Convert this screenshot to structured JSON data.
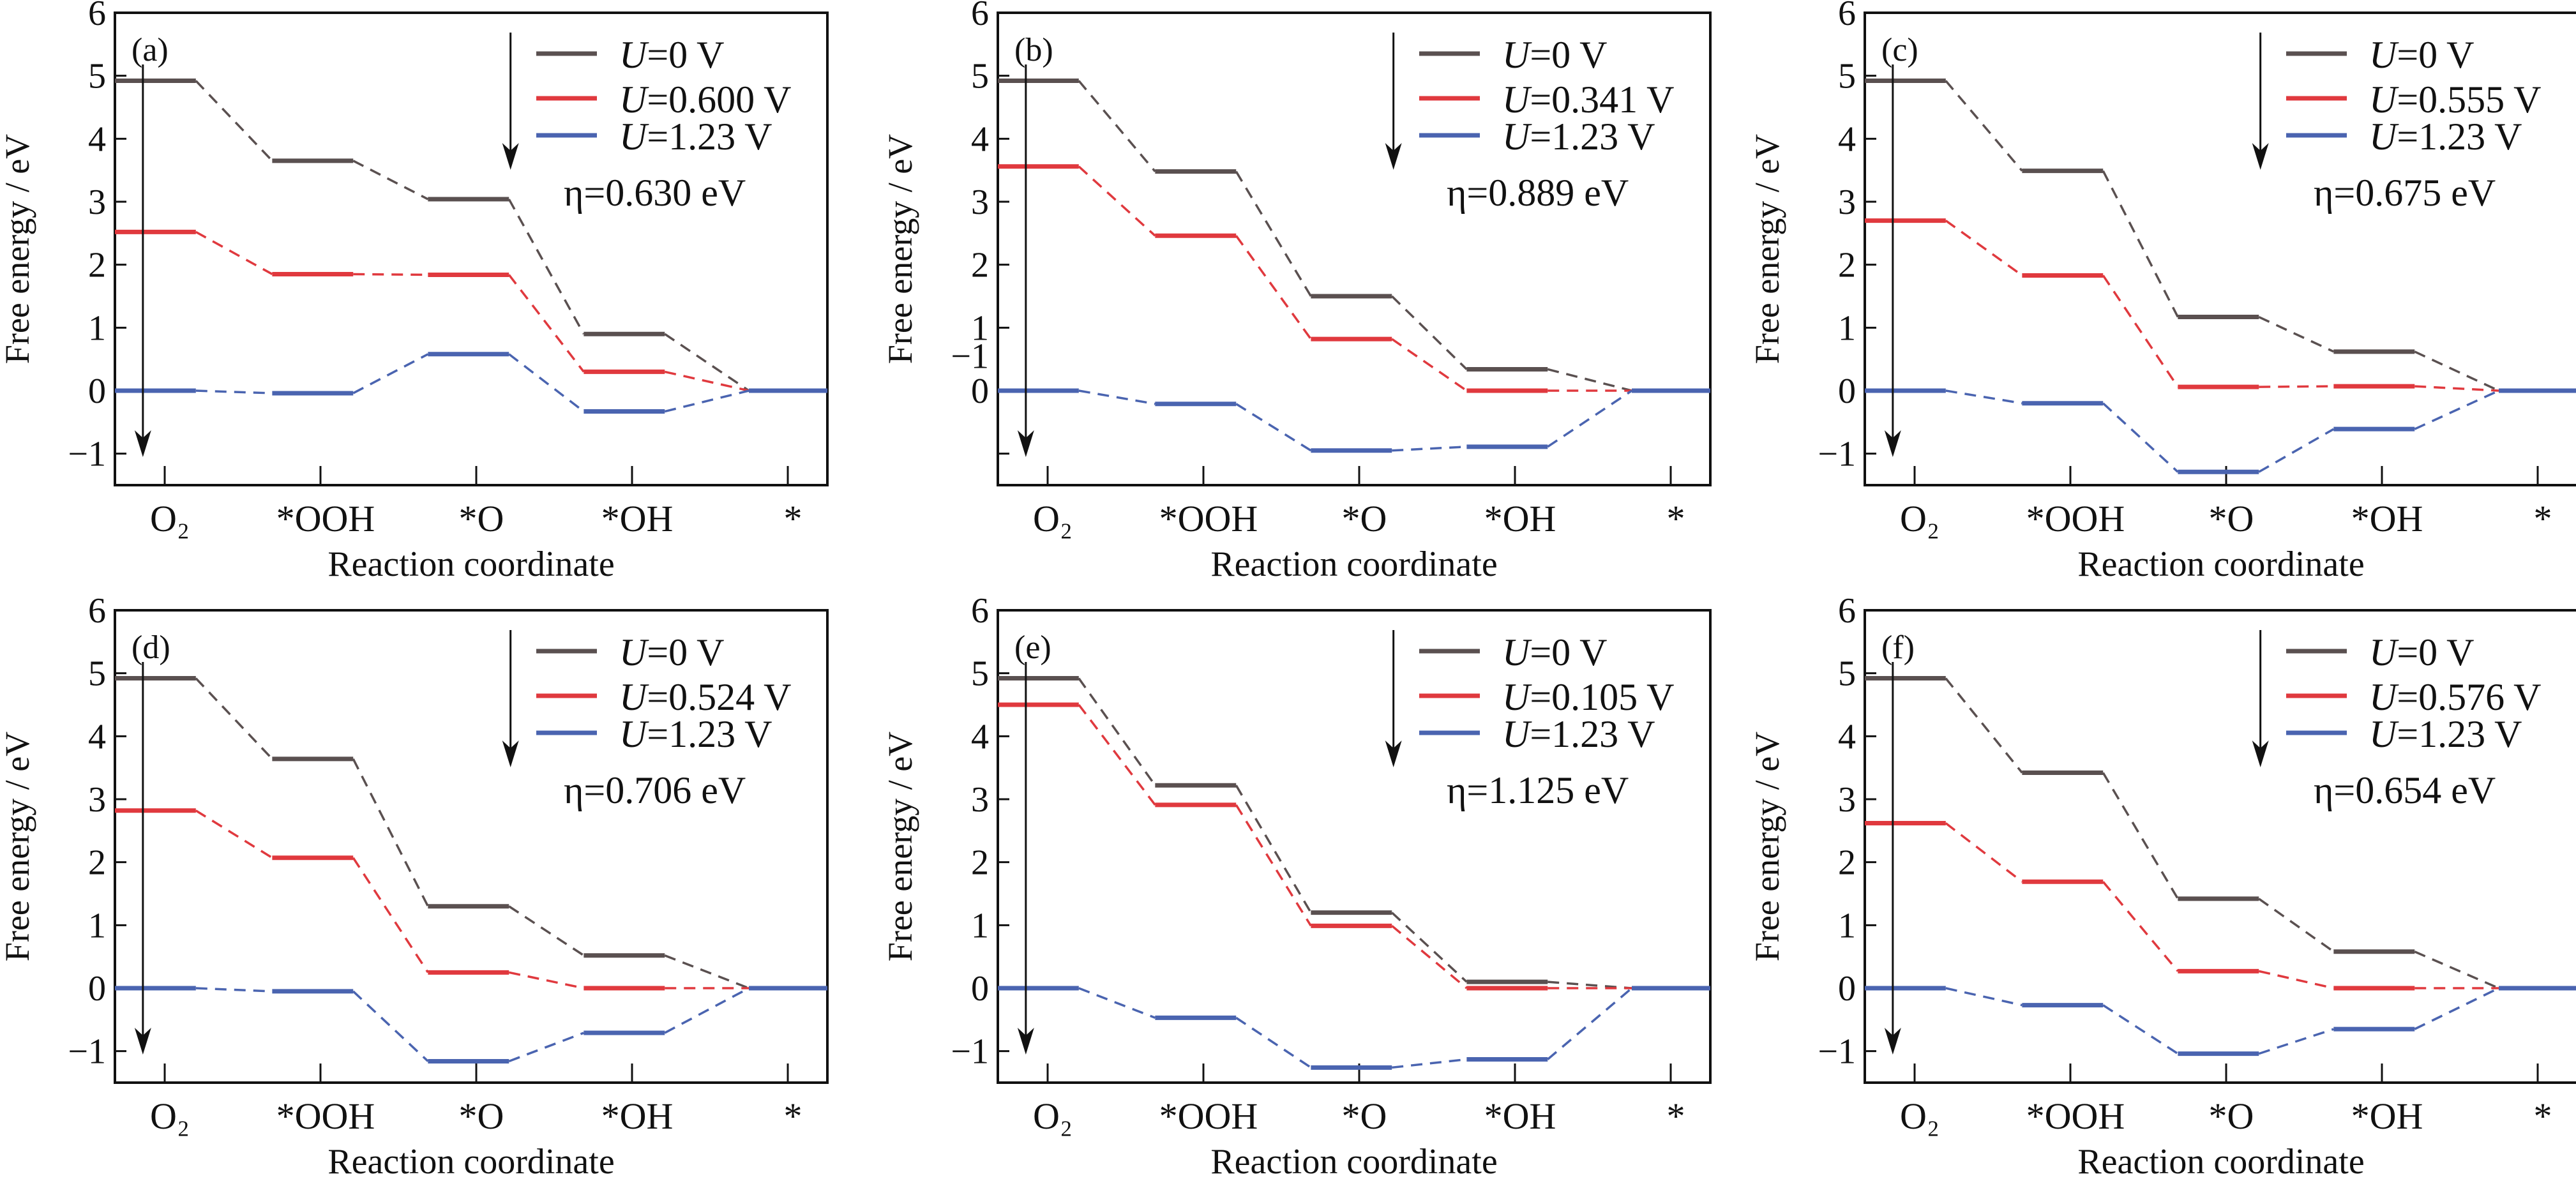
{
  "chart_data": [
    {
      "type": "line",
      "panel_label": "(a)",
      "xlabel": "Reaction coordinate",
      "ylabel": "Free energy / eV",
      "categories": [
        "O₂",
        "*OOH",
        "*O",
        "*OH",
        "*"
      ],
      "ylim": [
        -1.5,
        6
      ],
      "yticks": [
        -1,
        0,
        1,
        2,
        3,
        4,
        5,
        6
      ],
      "annotation": "η=0.630 eV",
      "series": [
        {
          "name": "U=0 V",
          "color": "#5a5050",
          "values": [
            4.92,
            3.65,
            3.04,
            0.9,
            0
          ]
        },
        {
          "name": "U=0.600 V",
          "color": "#e0393e",
          "values": [
            2.52,
            1.85,
            1.84,
            0.3,
            0
          ]
        },
        {
          "name": "U=1.23 V",
          "color": "#4a64b0",
          "values": [
            0,
            -0.04,
            0.58,
            -0.33,
            0
          ]
        }
      ]
    },
    {
      "type": "line",
      "panel_label": "(b)",
      "xlabel": "Reaction coordinate",
      "ylabel": "Free energy / eV",
      "categories": [
        "O₂",
        "*OOH",
        "*O",
        "*OH",
        "*"
      ],
      "ylim": [
        -1.5,
        6
      ],
      "yticks": [
        -1,
        0,
        1,
        2,
        3,
        4,
        5,
        6
      ],
      "annotation": "η=0.889 eV",
      "series": [
        {
          "name": "U=0 V",
          "color": "#5a5050",
          "values": [
            4.92,
            3.48,
            1.5,
            0.34,
            0
          ]
        },
        {
          "name": "U=0.341 V",
          "color": "#e0393e",
          "values": [
            3.56,
            2.46,
            0.82,
            0,
            0
          ]
        },
        {
          "name": "U=1.23 V",
          "color": "#4a64b0",
          "values": [
            0,
            -0.21,
            -0.95,
            -0.89,
            0
          ]
        }
      ]
    },
    {
      "type": "line",
      "panel_label": "(c)",
      "xlabel": "Reaction coordinate",
      "ylabel": "Free energy / eV",
      "categories": [
        "O₂",
        "*OOH",
        "*O",
        "*OH",
        "*"
      ],
      "ylim": [
        -1.5,
        6
      ],
      "yticks": [
        -1,
        0,
        1,
        2,
        3,
        4,
        5,
        6
      ],
      "annotation": "η=0.675 eV",
      "series": [
        {
          "name": "U=0 V",
          "color": "#5a5050",
          "values": [
            4.92,
            3.49,
            1.17,
            0.62,
            0
          ]
        },
        {
          "name": "U=0.555 V",
          "color": "#e0393e",
          "values": [
            2.7,
            1.83,
            0.06,
            0.07,
            0
          ]
        },
        {
          "name": "U=1.23 V",
          "color": "#4a64b0",
          "values": [
            0,
            -0.2,
            -1.29,
            -0.61,
            0
          ]
        }
      ]
    },
    {
      "type": "line",
      "panel_label": "(d)",
      "xlabel": "Reaction coordinate",
      "ylabel": "Free energy / eV",
      "categories": [
        "O₂",
        "*OOH",
        "*O",
        "*OH",
        "*"
      ],
      "ylim": [
        -1.5,
        6
      ],
      "yticks": [
        -1,
        0,
        1,
        2,
        3,
        4,
        5,
        6
      ],
      "annotation": "η=0.706 eV",
      "series": [
        {
          "name": "U=0 V",
          "color": "#5a5050",
          "values": [
            4.92,
            3.64,
            1.3,
            0.52,
            0
          ]
        },
        {
          "name": "U=0.524 V",
          "color": "#e0393e",
          "values": [
            2.82,
            2.07,
            0.25,
            0,
            0
          ]
        },
        {
          "name": "U=1.23 V",
          "color": "#4a64b0",
          "values": [
            0,
            -0.05,
            -1.16,
            -0.71,
            0
          ]
        }
      ]
    },
    {
      "type": "line",
      "panel_label": "(e)",
      "xlabel": "Reaction coordinate",
      "ylabel": "Free energy / eV",
      "categories": [
        "O₂",
        "*OOH",
        "*O",
        "*OH",
        "*"
      ],
      "ylim": [
        -1.5,
        6
      ],
      "yticks": [
        -1,
        0,
        1,
        2,
        3,
        4,
        5,
        6
      ],
      "annotation": "η=1.125 eV",
      "series": [
        {
          "name": "U=0 V",
          "color": "#5a5050",
          "values": [
            4.92,
            3.22,
            1.2,
            0.1,
            0
          ]
        },
        {
          "name": "U=0.105 V",
          "color": "#e0393e",
          "values": [
            4.5,
            2.91,
            0.99,
            0,
            0
          ]
        },
        {
          "name": "U=1.23 V",
          "color": "#4a64b0",
          "values": [
            0,
            -0.47,
            -1.26,
            -1.13,
            0
          ]
        }
      ]
    },
    {
      "type": "line",
      "panel_label": "(f)",
      "xlabel": "Reaction coordinate",
      "ylabel": "Free energy / eV",
      "categories": [
        "O₂",
        "*OOH",
        "*O",
        "*OH",
        "*"
      ],
      "ylim": [
        -1.5,
        6
      ],
      "yticks": [
        -1,
        0,
        1,
        2,
        3,
        4,
        5,
        6
      ],
      "annotation": "η=0.654 eV",
      "series": [
        {
          "name": "U=0 V",
          "color": "#5a5050",
          "values": [
            4.92,
            3.42,
            1.42,
            0.58,
            0
          ]
        },
        {
          "name": "U=0.576 V",
          "color": "#e0393e",
          "values": [
            2.62,
            1.69,
            0.27,
            0,
            0
          ]
        },
        {
          "name": "U=1.23 V",
          "color": "#4a64b0",
          "values": [
            0,
            -0.27,
            -1.04,
            -0.65,
            0
          ]
        }
      ]
    }
  ]
}
